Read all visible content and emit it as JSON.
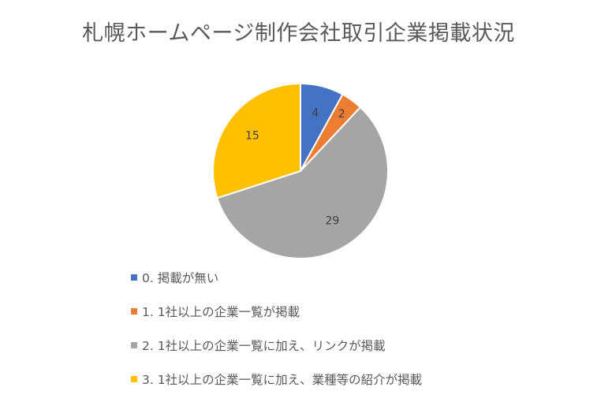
{
  "chart_data": {
    "type": "pie",
    "title": "札幌ホームページ制作会社取引企業掲載状況",
    "categories": [
      "0. 掲載が無い",
      "1. 1社以上の企業一覧が掲載",
      "2. 1社以上の企業一覧に加え、リンクが掲載",
      "3. 1社以上の企業一覧に加え、業種等の紹介が掲載"
    ],
    "values": [
      4,
      2,
      29,
      15
    ],
    "data_labels": [
      "4",
      "2",
      "29",
      "15"
    ],
    "colors": [
      "#4472C4",
      "#ED7D31",
      "#A5A5A5",
      "#FFC000"
    ],
    "legend_position": "bottom"
  }
}
